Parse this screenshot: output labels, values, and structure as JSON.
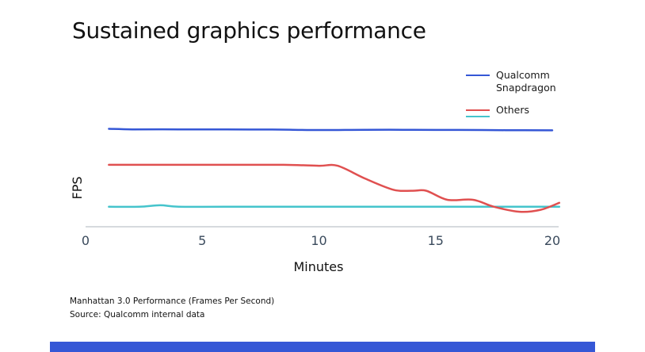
{
  "colors": {
    "qualcomm": "#3557d6",
    "others_red": "#e05050",
    "others_cyan": "#45c4cc",
    "axis": "#c8cdd3",
    "bar": "#3557d6"
  },
  "footnotes": {
    "line1": "Manhattan 3.0 Performance (Frames Per Second)",
    "line2": "Source: Qualcomm internal data"
  },
  "chart_data": {
    "type": "line",
    "title": "Sustained graphics performance",
    "xlabel": "Minutes",
    "ylabel": "FPS",
    "xlim": [
      0,
      20
    ],
    "xticks": [
      "0",
      "5",
      "10",
      "15",
      "20"
    ],
    "grid": false,
    "legend_placement": "top-right",
    "legend": [
      {
        "lines": [
          "Qualcomm",
          "Snapdragon"
        ],
        "colors": [
          "qualcomm"
        ]
      },
      {
        "lines": [
          "Others"
        ],
        "colors": [
          "others_red",
          "others_cyan"
        ]
      }
    ],
    "series": [
      {
        "name": "Qualcomm Snapdragon",
        "color": "qualcomm",
        "x": [
          1,
          2,
          4,
          6,
          8,
          10,
          12,
          14,
          16,
          18,
          20
        ],
        "y": [
          98,
          97.5,
          97.5,
          97.4,
          97.3,
          96.8,
          97.1,
          97,
          96.9,
          96.7,
          96.5
        ]
      },
      {
        "name": "Others",
        "color": "others_red",
        "x": [
          1,
          4,
          6,
          8.5,
          10,
          10.8,
          12,
          13.2,
          14,
          14.6,
          15.5,
          16.6,
          17.5,
          18.6,
          19.5,
          20.3
        ],
        "y": [
          62,
          62,
          62,
          62,
          61,
          61,
          48,
          37,
          36,
          36,
          27,
          27,
          20,
          15,
          17,
          24
        ]
      },
      {
        "name": "Others",
        "color": "others_cyan",
        "x": [
          1,
          2.3,
          3.2,
          4,
          6,
          10,
          15,
          20.3
        ],
        "y": [
          20,
          20,
          21.5,
          20,
          20,
          20,
          20,
          20
        ]
      }
    ]
  }
}
